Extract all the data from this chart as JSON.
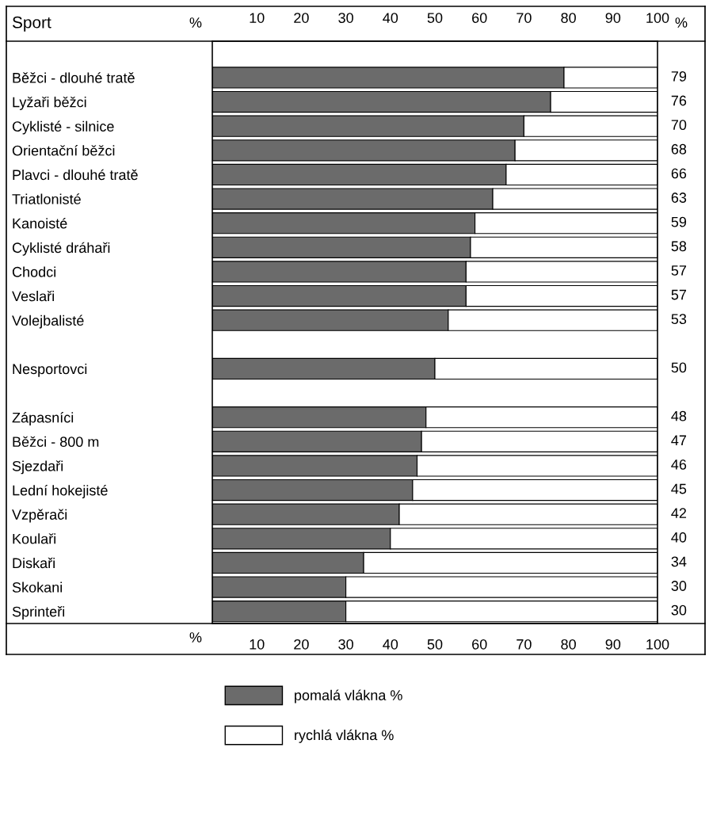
{
  "chart_data": {
    "type": "bar",
    "orientation": "horizontal",
    "stacked": true,
    "categories": [
      null,
      "Běžci - dlouhé tratě",
      "Lyžaři běžci",
      "Cyklisté - silnice",
      "Orientační běžci",
      "Plavci - dlouhé tratě",
      "Triatlonisté",
      "Kanoisté",
      "Cyklisté dráhaři",
      "Chodci",
      "Veslaři",
      "Volejbalisté",
      null,
      "Nesportovci",
      null,
      "Zápasníci",
      "Běžci - 800 m",
      "Sjezdaři",
      "Lední hokejisté",
      "Vzpěrači",
      "Koulaři",
      "Diskaři",
      "Skokani",
      "Sprinteři"
    ],
    "series": [
      {
        "name": "pomalá vlákna %",
        "color": "#6b6b6b",
        "data_labels": true,
        "values": [
          null,
          79,
          76,
          70,
          68,
          66,
          63,
          59,
          58,
          57,
          57,
          53,
          null,
          50,
          null,
          48,
          47,
          46,
          45,
          42,
          40,
          34,
          30,
          30
        ]
      },
      {
        "name": "rychlá vlákna %",
        "color": "#ffffff",
        "values": [
          null,
          21,
          24,
          30,
          32,
          34,
          37,
          41,
          42,
          43,
          43,
          47,
          null,
          50,
          null,
          52,
          53,
          54,
          55,
          58,
          60,
          66,
          70,
          70
        ]
      }
    ],
    "xlim": [
      0,
      100
    ],
    "xticks": [
      10,
      20,
      30,
      40,
      50,
      60,
      70,
      80,
      90,
      100
    ],
    "x2lim": [
      0,
      100
    ],
    "x2ticks": [
      10,
      20,
      30,
      40,
      50,
      60,
      70,
      80,
      90,
      100
    ],
    "annotations": [
      "Sport",
      "%",
      "%",
      "%"
    ],
    "legend": "bottom",
    "grid": false
  }
}
